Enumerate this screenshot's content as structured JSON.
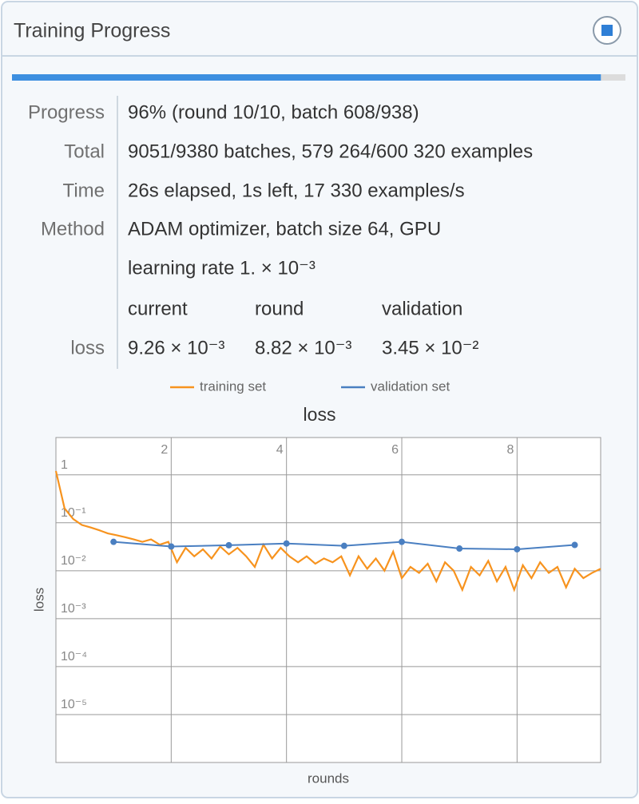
{
  "header": {
    "title": "Training Progress"
  },
  "progress": {
    "value": 96,
    "label": "96%"
  },
  "rows": [
    {
      "label": "Progress",
      "text": "(round 10/10, batch 608/938)"
    },
    {
      "label": "Total",
      "text": "9051/9380 batches, 579 264/600 320 examples"
    },
    {
      "label": "Time",
      "text": "26s elapsed, 1s left, 17 330 examples/s"
    },
    {
      "label": "Method",
      "text": "ADAM optimizer, batch size 64, GPU"
    },
    {
      "text": "learning rate 1. × 10⁻³"
    }
  ],
  "loss_table": {
    "label": "loss",
    "columns": [
      "current",
      "round",
      "validation"
    ],
    "values": [
      "9.26 × 10⁻³",
      "8.82 × 10⁻³",
      "3.45 × 10⁻²"
    ]
  },
  "chart_data": {
    "type": "line",
    "title": "loss",
    "x_label": "rounds",
    "y_label": "loss",
    "log_y": true,
    "grid": true,
    "xlim": [
      0,
      9.45
    ],
    "xticks": [
      2,
      4,
      6,
      8
    ],
    "ylim": [
      1e-06,
      6
    ],
    "yticks": [
      1,
      {
        "value": 0.1,
        "label": "10⁻¹"
      },
      {
        "value": 0.01,
        "label": "10⁻²"
      },
      {
        "value": 0.001,
        "label": "10⁻³"
      },
      {
        "value": 0.0001,
        "label": "10⁻⁴"
      },
      {
        "value": 1e-05,
        "label": "10⁻⁵"
      }
    ],
    "series": [
      {
        "name": "training set",
        "color": "#f7931e",
        "x": [
          0,
          0.15,
          0.3,
          0.45,
          0.6,
          0.75,
          0.9,
          1.05,
          1.2,
          1.35,
          1.5,
          1.65,
          1.8,
          1.95,
          2.1,
          2.25,
          2.4,
          2.55,
          2.7,
          2.85,
          3,
          3.15,
          3.3,
          3.45,
          3.6,
          3.75,
          3.9,
          4.05,
          4.2,
          4.35,
          4.5,
          4.65,
          4.8,
          4.95,
          5.1,
          5.25,
          5.4,
          5.55,
          5.7,
          5.85,
          6,
          6.15,
          6.3,
          6.45,
          6.6,
          6.75,
          6.9,
          7.05,
          7.2,
          7.35,
          7.5,
          7.65,
          7.8,
          7.95,
          8.1,
          8.25,
          8.4,
          8.55,
          8.7,
          8.85,
          9,
          9.15,
          9.3,
          9.45
        ],
        "values": [
          1.2,
          0.2,
          0.12,
          0.09,
          0.08,
          0.07,
          0.06,
          0.055,
          0.05,
          0.045,
          0.04,
          0.045,
          0.035,
          0.04,
          0.015,
          0.03,
          0.02,
          0.028,
          0.018,
          0.032,
          0.022,
          0.03,
          0.02,
          0.012,
          0.035,
          0.018,
          0.03,
          0.02,
          0.015,
          0.02,
          0.014,
          0.018,
          0.015,
          0.02,
          0.008,
          0.02,
          0.011,
          0.018,
          0.01,
          0.025,
          0.007,
          0.012,
          0.009,
          0.014,
          0.006,
          0.015,
          0.01,
          0.004,
          0.012,
          0.008,
          0.016,
          0.006,
          0.012,
          0.004,
          0.013,
          0.007,
          0.015,
          0.009,
          0.012,
          0.0045,
          0.011,
          0.007,
          0.009,
          0.011
        ]
      },
      {
        "name": "validation set",
        "color": "#4a7fc1",
        "x": [
          1,
          2,
          3,
          4,
          5,
          6,
          7,
          8,
          9
        ],
        "values": [
          0.04,
          0.032,
          0.034,
          0.037,
          0.033,
          0.04,
          0.029,
          0.028,
          0.0345
        ]
      }
    ]
  }
}
